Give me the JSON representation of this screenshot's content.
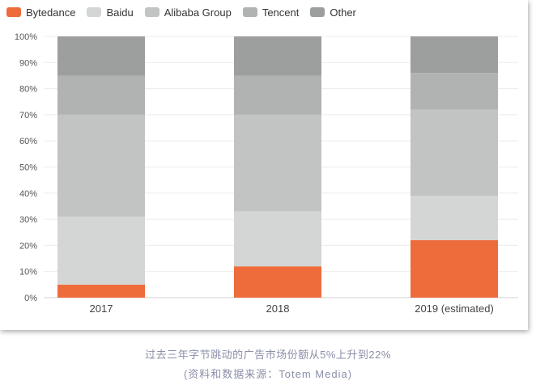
{
  "chart_data": {
    "type": "bar",
    "stacked": true,
    "categories": [
      "2017",
      "2018",
      "2019 (estimated)"
    ],
    "series": [
      {
        "name": "Bytedance",
        "color": "#ee6c3c",
        "values": [
          5,
          12,
          22
        ]
      },
      {
        "name": "Baidu",
        "color": "#d4d6d5",
        "values": [
          26,
          21,
          17
        ]
      },
      {
        "name": "Alibaba Group",
        "color": "#c2c3c3",
        "values": [
          39,
          37,
          33
        ]
      },
      {
        "name": "Tencent",
        "color": "#b1b2b2",
        "values": [
          15,
          15,
          14
        ]
      },
      {
        "name": "Other",
        "color": "#9d9e9e",
        "values": [
          15,
          15,
          14
        ]
      }
    ],
    "yticks": [
      "0%",
      "10%",
      "20%",
      "30%",
      "40%",
      "50%",
      "60%",
      "70%",
      "80%",
      "90%",
      "100%"
    ],
    "ylim": [
      0,
      100
    ],
    "grid": true,
    "legend_position": "top-left"
  },
  "caption": {
    "line1": "过去三年字节跳动的广告市场份额从5%上升到22%",
    "line2": "(资料和数据来源：Totem Media)"
  }
}
